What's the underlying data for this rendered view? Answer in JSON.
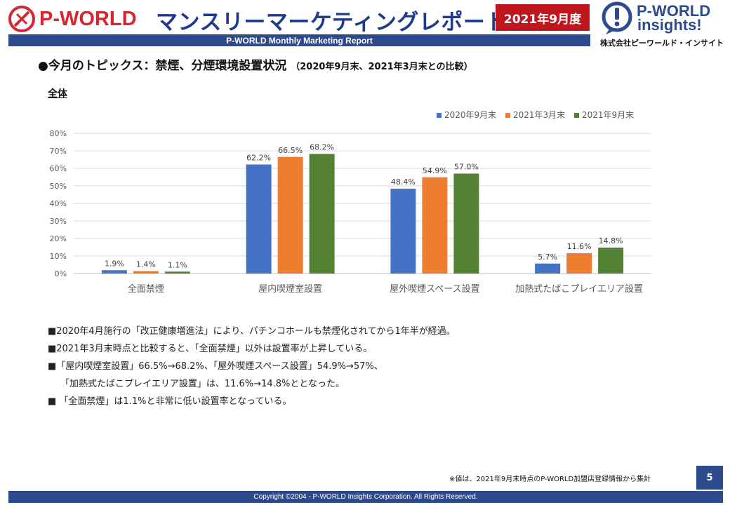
{
  "header": {
    "logo_text": "P-WORLD",
    "title": "マンスリーマーケティングレポート",
    "period_badge": "2021年9月度",
    "subtitle_bar": "P-WORLD Monthly Marketing Report",
    "brand_line1": "P-WORLD",
    "brand_line2": "insights!",
    "brand_corp": "株式会社ピーワールド・インサイト"
  },
  "topic": {
    "heading": "●今月のトピックス：禁煙、分煙環境設置状況",
    "heading_sub": "（2020年9月末、2021年3月末との比較）",
    "section": "全体"
  },
  "chart_data": {
    "type": "bar",
    "categories": [
      "全面禁煙",
      "屋内喫煙室設置",
      "屋外喫煙スペース設置",
      "加熱式たばこプレイエリア設置"
    ],
    "series": [
      {
        "name": "2020年9月末",
        "values": [
          1.9,
          62.2,
          48.4,
          5.7
        ],
        "labels": [
          "1.9%",
          "62.2%",
          "48.4%",
          "5.7%"
        ]
      },
      {
        "name": "2021年3月末",
        "values": [
          1.4,
          66.5,
          54.9,
          11.6
        ],
        "labels": [
          "1.4%",
          "66.5%",
          "54.9%",
          "11.6%"
        ]
      },
      {
        "name": "2021年9月末",
        "values": [
          1.1,
          68.2,
          57.0,
          14.8
        ],
        "labels": [
          "1.1%",
          "68.2%",
          "57.0%",
          "14.8%"
        ]
      }
    ],
    "colors": [
      "#4472c4",
      "#ed7d31",
      "#548235"
    ],
    "ylim": [
      0,
      80
    ],
    "yticks": [
      "0%",
      "10%",
      "20%",
      "30%",
      "40%",
      "50%",
      "60%",
      "70%",
      "80%"
    ],
    "grid": true,
    "legend": "top-right"
  },
  "notes": [
    "■2020年4月施行の「改正健康増進法」により、パチンコホールも禁煙化されてから1年半が経過。",
    "■2021年3月末時点と比較すると、「全面禁煙」以外は設置率が上昇している。",
    "■「屋内喫煙室設置」66.5%→68.2%、「屋外喫煙スペース設置」54.9%→57%、",
    "「加熱式たばこプレイエリア設置」は、11.6%→14.8%ととなった。",
    "■ 「全面禁煙」は1.1%と非常に低い設置率となっている。"
  ],
  "footer": {
    "note": "※値は、2021年9月末時点のP-WORLD加盟店登録情報から集計",
    "page": "5",
    "copyright": "Copyright ©2004 -  P-WORLD Insights Corporation. All Rights Reserved."
  }
}
